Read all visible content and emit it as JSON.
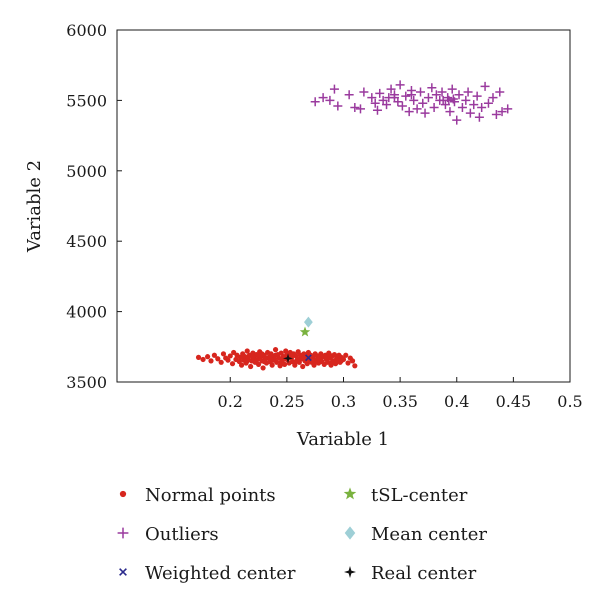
{
  "chart_data": {
    "type": "scatter",
    "xlabel": "Variable 1",
    "ylabel": "Variable 2",
    "xlim": [
      0.1,
      0.5
    ],
    "ylim": [
      3500,
      6000
    ],
    "xticks": [
      0.2,
      0.25,
      0.3,
      0.35,
      0.4,
      0.45,
      0.5
    ],
    "yticks": [
      3500,
      4000,
      4500,
      5000,
      5500,
      6000
    ],
    "legend_position": "below",
    "series": [
      {
        "name": "Normal points",
        "marker": "dot",
        "color": "#d7261e",
        "points": [
          [
            0.172,
            3675
          ],
          [
            0.176,
            3660
          ],
          [
            0.18,
            3680
          ],
          [
            0.183,
            3650
          ],
          [
            0.186,
            3690
          ],
          [
            0.189,
            3665
          ],
          [
            0.192,
            3640
          ],
          [
            0.194,
            3700
          ],
          [
            0.196,
            3670
          ],
          [
            0.198,
            3655
          ],
          [
            0.2,
            3685
          ],
          [
            0.202,
            3630
          ],
          [
            0.203,
            3710
          ],
          [
            0.205,
            3660
          ],
          [
            0.206,
            3690
          ],
          [
            0.208,
            3645
          ],
          [
            0.209,
            3675
          ],
          [
            0.21,
            3620
          ],
          [
            0.211,
            3700
          ],
          [
            0.212,
            3655
          ],
          [
            0.213,
            3680
          ],
          [
            0.214,
            3635
          ],
          [
            0.215,
            3720
          ],
          [
            0.216,
            3665
          ],
          [
            0.217,
            3690
          ],
          [
            0.218,
            3610
          ],
          [
            0.219,
            3650
          ],
          [
            0.22,
            3705
          ],
          [
            0.221,
            3670
          ],
          [
            0.222,
            3640
          ],
          [
            0.223,
            3695
          ],
          [
            0.224,
            3660
          ],
          [
            0.225,
            3625
          ],
          [
            0.226,
            3715
          ],
          [
            0.227,
            3680
          ],
          [
            0.228,
            3650
          ],
          [
            0.229,
            3600
          ],
          [
            0.23,
            3690
          ],
          [
            0.231,
            3665
          ],
          [
            0.232,
            3635
          ],
          [
            0.233,
            3710
          ],
          [
            0.234,
            3675
          ],
          [
            0.235,
            3645
          ],
          [
            0.236,
            3700
          ],
          [
            0.237,
            3620
          ],
          [
            0.238,
            3685
          ],
          [
            0.239,
            3660
          ],
          [
            0.24,
            3730
          ],
          [
            0.241,
            3640
          ],
          [
            0.242,
            3695
          ],
          [
            0.243,
            3670
          ],
          [
            0.244,
            3615
          ],
          [
            0.245,
            3705
          ],
          [
            0.246,
            3650
          ],
          [
            0.247,
            3680
          ],
          [
            0.248,
            3625
          ],
          [
            0.249,
            3720
          ],
          [
            0.25,
            3660
          ],
          [
            0.251,
            3690
          ],
          [
            0.252,
            3635
          ],
          [
            0.253,
            3710
          ],
          [
            0.254,
            3670
          ],
          [
            0.255,
            3645
          ],
          [
            0.256,
            3700
          ],
          [
            0.257,
            3620
          ],
          [
            0.258,
            3685
          ],
          [
            0.259,
            3655
          ],
          [
            0.26,
            3715
          ],
          [
            0.261,
            3640
          ],
          [
            0.262,
            3690
          ],
          [
            0.263,
            3665
          ],
          [
            0.264,
            3610
          ],
          [
            0.265,
            3700
          ],
          [
            0.266,
            3650
          ],
          [
            0.267,
            3680
          ],
          [
            0.268,
            3630
          ],
          [
            0.269,
            3710
          ],
          [
            0.27,
            3660
          ],
          [
            0.271,
            3690
          ],
          [
            0.272,
            3640
          ],
          [
            0.273,
            3675
          ],
          [
            0.274,
            3620
          ],
          [
            0.275,
            3700
          ],
          [
            0.276,
            3655
          ],
          [
            0.277,
            3685
          ],
          [
            0.278,
            3635
          ],
          [
            0.279,
            3670
          ],
          [
            0.28,
            3700
          ],
          [
            0.281,
            3645
          ],
          [
            0.282,
            3680
          ],
          [
            0.283,
            3625
          ],
          [
            0.284,
            3690
          ],
          [
            0.285,
            3660
          ],
          [
            0.286,
            3640
          ],
          [
            0.287,
            3705
          ],
          [
            0.288,
            3670
          ],
          [
            0.289,
            3620
          ],
          [
            0.29,
            3685
          ],
          [
            0.291,
            3650
          ],
          [
            0.292,
            3695
          ],
          [
            0.293,
            3630
          ],
          [
            0.294,
            3670
          ],
          [
            0.295,
            3655
          ],
          [
            0.296,
            3690
          ],
          [
            0.297,
            3640
          ],
          [
            0.298,
            3675
          ],
          [
            0.3,
            3660
          ],
          [
            0.302,
            3690
          ],
          [
            0.304,
            3635
          ],
          [
            0.306,
            3670
          ],
          [
            0.308,
            3650
          ],
          [
            0.31,
            3615
          ],
          [
            0.215,
            3650
          ],
          [
            0.225,
            3690
          ],
          [
            0.235,
            3665
          ],
          [
            0.245,
            3640
          ],
          [
            0.255,
            3690
          ],
          [
            0.265,
            3670
          ],
          [
            0.275,
            3645
          ],
          [
            0.285,
            3675
          ],
          [
            0.22,
            3680
          ],
          [
            0.23,
            3645
          ],
          [
            0.24,
            3690
          ],
          [
            0.25,
            3700
          ],
          [
            0.26,
            3660
          ],
          [
            0.27,
            3695
          ],
          [
            0.28,
            3660
          ],
          [
            0.29,
            3640
          ],
          [
            0.228,
            3700
          ],
          [
            0.238,
            3655
          ],
          [
            0.248,
            3675
          ],
          [
            0.258,
            3645
          ],
          [
            0.268,
            3690
          ],
          [
            0.278,
            3665
          ],
          [
            0.288,
            3690
          ],
          [
            0.298,
            3650
          ]
        ]
      },
      {
        "name": "Outliers",
        "marker": "plus",
        "color": "#9a3a9e",
        "points": [
          [
            0.275,
            5490
          ],
          [
            0.282,
            5520
          ],
          [
            0.288,
            5500
          ],
          [
            0.292,
            5580
          ],
          [
            0.295,
            5460
          ],
          [
            0.305,
            5540
          ],
          [
            0.31,
            5450
          ],
          [
            0.315,
            5440
          ],
          [
            0.318,
            5560
          ],
          [
            0.325,
            5520
          ],
          [
            0.328,
            5480
          ],
          [
            0.33,
            5430
          ],
          [
            0.332,
            5550
          ],
          [
            0.335,
            5500
          ],
          [
            0.338,
            5470
          ],
          [
            0.34,
            5520
          ],
          [
            0.342,
            5580
          ],
          [
            0.345,
            5540
          ],
          [
            0.348,
            5490
          ],
          [
            0.35,
            5610
          ],
          [
            0.352,
            5460
          ],
          [
            0.355,
            5530
          ],
          [
            0.358,
            5420
          ],
          [
            0.36,
            5570
          ],
          [
            0.362,
            5500
          ],
          [
            0.365,
            5440
          ],
          [
            0.368,
            5560
          ],
          [
            0.37,
            5480
          ],
          [
            0.372,
            5410
          ],
          [
            0.375,
            5520
          ],
          [
            0.378,
            5590
          ],
          [
            0.38,
            5450
          ],
          [
            0.382,
            5540
          ],
          [
            0.385,
            5500
          ],
          [
            0.387,
            5560
          ],
          [
            0.39,
            5470
          ],
          [
            0.392,
            5520
          ],
          [
            0.394,
            5420
          ],
          [
            0.396,
            5580
          ],
          [
            0.398,
            5490
          ],
          [
            0.4,
            5360
          ],
          [
            0.402,
            5540
          ],
          [
            0.405,
            5450
          ],
          [
            0.408,
            5500
          ],
          [
            0.41,
            5560
          ],
          [
            0.412,
            5410
          ],
          [
            0.415,
            5470
          ],
          [
            0.418,
            5530
          ],
          [
            0.42,
            5380
          ],
          [
            0.422,
            5450
          ],
          [
            0.425,
            5600
          ],
          [
            0.428,
            5480
          ],
          [
            0.432,
            5520
          ],
          [
            0.435,
            5400
          ],
          [
            0.438,
            5560
          ],
          [
            0.44,
            5420
          ],
          [
            0.445,
            5440
          ],
          [
            0.388,
            5500
          ],
          [
            0.393,
            5500
          ],
          [
            0.397,
            5510
          ],
          [
            0.36,
            5540
          ],
          [
            0.345,
            5520
          ]
        ]
      },
      {
        "name": "Weighted center",
        "marker": "x",
        "color": "#2b2a8c",
        "points": [
          [
            0.269,
            3672
          ]
        ]
      },
      {
        "name": "tSL-center",
        "marker": "star",
        "color": "#7ab23f",
        "points": [
          [
            0.266,
            3855
          ]
        ]
      },
      {
        "name": "Mean center",
        "marker": "diamond",
        "color": "#9ecfd6",
        "points": [
          [
            0.269,
            3925
          ]
        ]
      },
      {
        "name": "Real center",
        "marker": "cross4",
        "color": "#111111",
        "points": [
          [
            0.251,
            3668
          ]
        ]
      }
    ]
  }
}
